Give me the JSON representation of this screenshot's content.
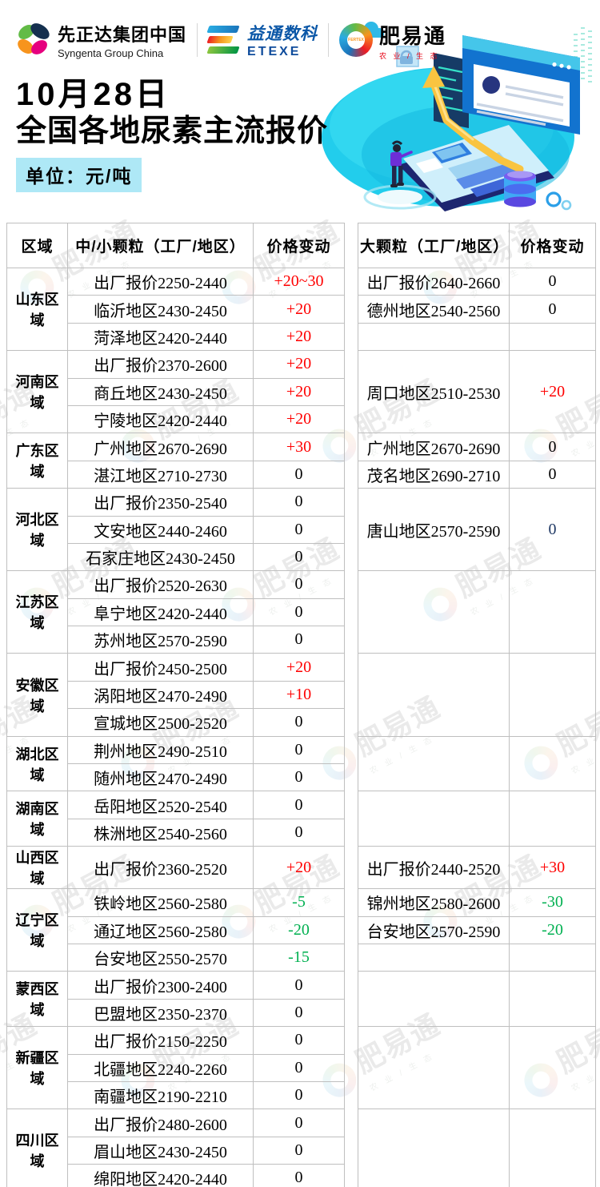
{
  "page": {
    "logos": {
      "syngenta_cn": "先正达集团中国",
      "syngenta_en": "Syngenta Group China",
      "etexe_cn": "益通数科",
      "etexe_en": "ETEXE",
      "fyt_cn": "肥易通",
      "fyt_sub": "农 业 / 生 态",
      "fyt_inner": "FERTEX"
    },
    "title_line1": "10月28日",
    "title_line2": "全国各地尿素主流报价",
    "unit_label": "单位：元/吨"
  },
  "colors": {
    "up": "#ff0000",
    "down": "#00b050",
    "flat": "#000000",
    "navy": "#1f3864",
    "badge_bg": "#aee8f6",
    "table_border": "#bfbfbf"
  },
  "watermark": {
    "text": "肥易通",
    "sub": "农 业 / 生 态"
  },
  "table": {
    "headers": {
      "region": "区域",
      "small": "中/小颗粒（工厂/地区）",
      "change": "价格变动",
      "large": "大颗粒（工厂/地区）",
      "change2": "价格变动"
    },
    "groups": [
      {
        "region": "山东区域",
        "left": [
          {
            "label": "出厂报价2250-2440",
            "change": "+20~30",
            "dir": "up"
          },
          {
            "label": "临沂地区2430-2450",
            "change": "+20",
            "dir": "up"
          },
          {
            "label": "菏泽地区2420-2440",
            "change": "+20",
            "dir": "up"
          }
        ],
        "right": {
          "mode": "rows",
          "rows": [
            {
              "label": "出厂报价2640-2660",
              "change": "0",
              "dir": "flat"
            },
            {
              "label": "德州地区2540-2560",
              "change": "0",
              "dir": "flat"
            },
            {
              "label": "",
              "change": "",
              "dir": "flat"
            }
          ]
        }
      },
      {
        "region": "河南区域",
        "left": [
          {
            "label": "出厂报价2370-2600",
            "change": "+20",
            "dir": "up"
          },
          {
            "label": "商丘地区2430-2450",
            "change": "+20",
            "dir": "up"
          },
          {
            "label": "宁陵地区2420-2440",
            "change": "+20",
            "dir": "up"
          }
        ],
        "right": {
          "mode": "merged",
          "label": "周口地区2510-2530",
          "change": "+20",
          "dir": "up"
        }
      },
      {
        "region": "广东区域",
        "left": [
          {
            "label": "广州地区2670-2690",
            "change": "+30",
            "dir": "up"
          },
          {
            "label": "湛江地区2710-2730",
            "change": "0",
            "dir": "flat"
          }
        ],
        "right": {
          "mode": "rows",
          "rows": [
            {
              "label": "广州地区2670-2690",
              "change": "0",
              "dir": "flat"
            },
            {
              "label": "茂名地区2690-2710",
              "change": "0",
              "dir": "flat"
            }
          ]
        }
      },
      {
        "region": "河北区域",
        "left": [
          {
            "label": "出厂报价2350-2540",
            "change": "0",
            "dir": "flat"
          },
          {
            "label": "文安地区2440-2460",
            "change": "0",
            "dir": "flat"
          },
          {
            "label": "石家庄地区2430-2450",
            "change": "0",
            "dir": "flat"
          }
        ],
        "right": {
          "mode": "merged",
          "label": "唐山地区2570-2590",
          "change": "0",
          "dir": "navy"
        }
      },
      {
        "region": "江苏区域",
        "left": [
          {
            "label": "出厂报价2520-2630",
            "change": "0",
            "dir": "flat"
          },
          {
            "label": "阜宁地区2420-2440",
            "change": "0",
            "dir": "flat"
          },
          {
            "label": "苏州地区2570-2590",
            "change": "0",
            "dir": "flat"
          }
        ],
        "right": {
          "mode": "merged",
          "label": "",
          "change": "",
          "dir": "flat"
        }
      },
      {
        "region": "安徽区域",
        "left": [
          {
            "label": "出厂报价2450-2500",
            "change": "+20",
            "dir": "up"
          },
          {
            "label": "涡阳地区2470-2490",
            "change": "+10",
            "dir": "up"
          },
          {
            "label": "宣城地区2500-2520",
            "change": "0",
            "dir": "flat"
          }
        ],
        "right": {
          "mode": "merged",
          "label": "",
          "change": "",
          "dir": "flat"
        }
      },
      {
        "region": "湖北区域",
        "left": [
          {
            "label": "荆州地区2490-2510",
            "change": "0",
            "dir": "flat"
          },
          {
            "label": "随州地区2470-2490",
            "change": "0",
            "dir": "flat"
          }
        ],
        "right": {
          "mode": "merged",
          "label": "",
          "change": "",
          "dir": "flat"
        }
      },
      {
        "region": "湖南区域",
        "left": [
          {
            "label": "岳阳地区2520-2540",
            "change": "0",
            "dir": "flat"
          },
          {
            "label": "株洲地区2540-2560",
            "change": "0",
            "dir": "flat"
          }
        ],
        "right": {
          "mode": "merged",
          "label": "",
          "change": "",
          "dir": "flat"
        }
      },
      {
        "region": "山西区域",
        "left": [
          {
            "label": "出厂报价2360-2520",
            "change": "+20",
            "dir": "up"
          }
        ],
        "right": {
          "mode": "rows",
          "rows": [
            {
              "label": "出厂报价2440-2520",
              "change": "+30",
              "dir": "up"
            }
          ]
        }
      },
      {
        "region": "辽宁区域",
        "left": [
          {
            "label": "铁岭地区2560-2580",
            "change": "-5",
            "dir": "down"
          },
          {
            "label": "通辽地区2560-2580",
            "change": "-20",
            "dir": "down"
          },
          {
            "label": "台安地区2550-2570",
            "change": "-15",
            "dir": "down"
          }
        ],
        "right": {
          "mode": "rows",
          "rows": [
            {
              "label": "锦州地区2580-2600",
              "change": "-30",
              "dir": "down"
            },
            {
              "label": "台安地区2570-2590",
              "change": "-20",
              "dir": "down"
            },
            {
              "label": "",
              "change": "",
              "dir": "flat"
            }
          ]
        }
      },
      {
        "region": "蒙西区域",
        "left": [
          {
            "label": "出厂报价2300-2400",
            "change": "0",
            "dir": "flat"
          },
          {
            "label": "巴盟地区2350-2370",
            "change": "0",
            "dir": "flat"
          }
        ],
        "right": {
          "mode": "merged",
          "label": "",
          "change": "",
          "dir": "flat"
        }
      },
      {
        "region": "新疆区域",
        "left": [
          {
            "label": "出厂报价2150-2250",
            "change": "0",
            "dir": "flat"
          },
          {
            "label": "北疆地区2240-2260",
            "change": "0",
            "dir": "flat"
          },
          {
            "label": "南疆地区2190-2210",
            "change": "0",
            "dir": "flat"
          }
        ],
        "right": {
          "mode": "merged",
          "label": "",
          "change": "",
          "dir": "flat"
        }
      },
      {
        "region": "四川区域",
        "left": [
          {
            "label": "出厂报价2480-2600",
            "change": "0",
            "dir": "flat"
          },
          {
            "label": "眉山地区2430-2450",
            "change": "0",
            "dir": "flat"
          },
          {
            "label": "绵阳地区2420-2440",
            "change": "0",
            "dir": "flat"
          }
        ],
        "right": {
          "mode": "merged",
          "label": "",
          "change": "",
          "dir": "flat"
        }
      }
    ]
  }
}
